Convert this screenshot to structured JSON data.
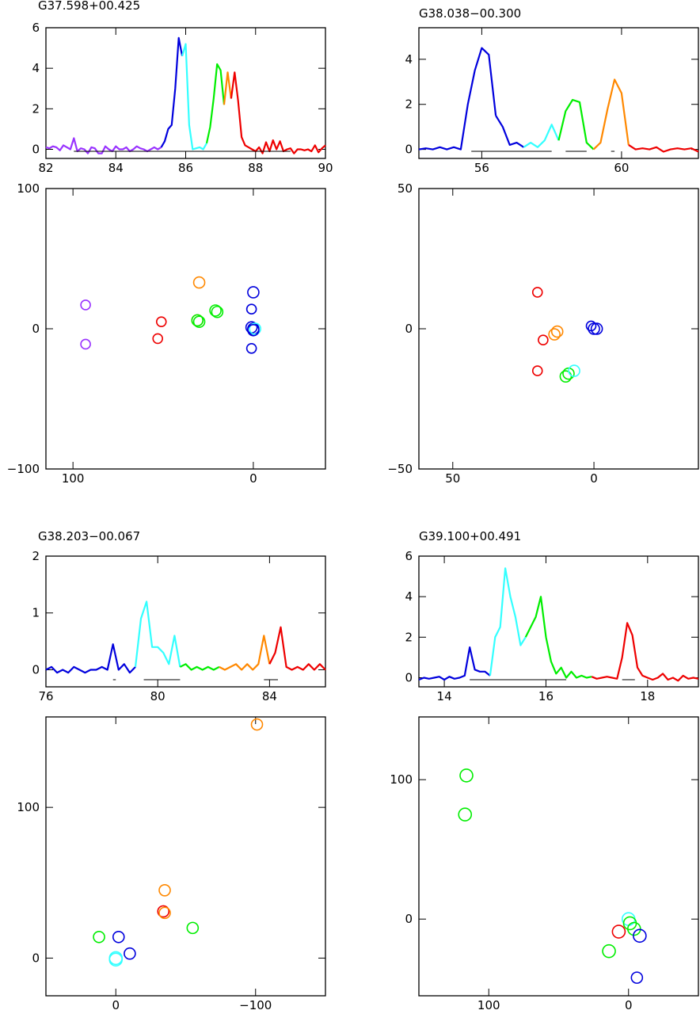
{
  "chart_data": [
    {
      "type": "line",
      "title": "G37.598+00.425",
      "xlim": [
        82,
        90
      ],
      "ylim": [
        -0.45,
        6
      ],
      "xticks": [
        82,
        84,
        86,
        88,
        90
      ],
      "yticks": [
        0,
        2,
        4,
        6
      ],
      "series": [
        {
          "color": "#9933ff",
          "x": [
            82.0,
            82.1,
            82.2,
            82.3,
            82.4,
            82.5,
            82.6,
            82.7,
            82.8,
            82.9,
            83.0,
            83.1,
            83.2,
            83.3,
            83.4,
            83.5,
            83.6,
            83.7,
            83.8,
            83.9,
            84.0,
            84.1,
            84.2,
            84.3,
            84.4,
            84.5,
            84.6,
            84.7,
            84.8,
            84.9,
            85.0,
            85.1,
            85.2,
            85.3
          ],
          "y": [
            0.1,
            0.05,
            0.15,
            0.1,
            -0.05,
            0.2,
            0.1,
            0.0,
            0.55,
            -0.1,
            0.05,
            0.0,
            -0.2,
            0.1,
            0.05,
            -0.2,
            -0.2,
            0.15,
            0.0,
            -0.1,
            0.15,
            0.0,
            0.0,
            0.1,
            -0.1,
            0.0,
            0.15,
            0.05,
            0.0,
            -0.1,
            0.0,
            0.1,
            0.0,
            0.1
          ]
        },
        {
          "color": "#0000dd",
          "x": [
            85.3,
            85.4,
            85.5,
            85.6,
            85.7,
            85.8,
            85.9
          ],
          "y": [
            0.1,
            0.4,
            1.0,
            1.2,
            3.0,
            5.5,
            4.6
          ]
        },
        {
          "color": "#33ffff",
          "x": [
            85.9,
            86.0,
            86.1,
            86.2,
            86.3,
            86.4,
            86.5,
            86.6
          ],
          "y": [
            4.6,
            5.2,
            1.2,
            0.0,
            0.05,
            0.1,
            0.0,
            0.3
          ]
        },
        {
          "color": "#00ee00",
          "x": [
            86.6,
            86.7,
            86.8,
            86.9,
            87.0,
            87.1
          ],
          "y": [
            0.3,
            1.1,
            2.5,
            4.2,
            3.9,
            2.2
          ]
        },
        {
          "color": "#ff8800",
          "x": [
            87.1,
            87.2,
            87.3
          ],
          "y": [
            2.2,
            3.8,
            2.5
          ]
        },
        {
          "color": "#ee0000",
          "x": [
            87.3,
            87.4,
            87.5,
            87.6,
            87.7,
            87.8,
            87.9,
            88.0,
            88.1,
            88.2,
            88.3,
            88.4,
            88.5,
            88.6,
            88.7,
            88.8,
            88.9,
            89.0,
            89.1,
            89.2,
            89.3,
            89.4,
            89.5,
            89.6,
            89.7,
            89.8,
            89.9,
            90.0
          ],
          "y": [
            2.5,
            3.8,
            2.4,
            0.6,
            0.2,
            0.1,
            0.0,
            -0.1,
            0.1,
            -0.2,
            0.35,
            -0.1,
            0.45,
            0.0,
            0.4,
            -0.1,
            0.0,
            0.05,
            -0.2,
            0.0,
            0.0,
            -0.05,
            0.0,
            -0.1,
            0.2,
            -0.15,
            0.05,
            0.2
          ]
        }
      ],
      "ranges": [
        [
          82.8,
          89.0
        ]
      ]
    },
    {
      "type": "scatter",
      "xlim": [
        115,
        -40
      ],
      "ylim": [
        -100,
        100
      ],
      "xticks": [
        100,
        0
      ],
      "yticks": [
        -100,
        0,
        100
      ],
      "points": [
        {
          "x": 93,
          "y": 17,
          "color": "#9933ff",
          "r": 6
        },
        {
          "x": 93,
          "y": -11,
          "color": "#9933ff",
          "r": 6
        },
        {
          "x": 51,
          "y": 5,
          "color": "#ee0000",
          "r": 6
        },
        {
          "x": 53,
          "y": -7,
          "color": "#ee0000",
          "r": 6
        },
        {
          "x": 30,
          "y": 33,
          "color": "#ff8800",
          "r": 7
        },
        {
          "x": 31,
          "y": 6,
          "color": "#ff8800",
          "r": 7
        },
        {
          "x": 31,
          "y": 6,
          "color": "#00ee00",
          "r": 7
        },
        {
          "x": 30,
          "y": 5,
          "color": "#00ee00",
          "r": 7
        },
        {
          "x": 21,
          "y": 13,
          "color": "#00ee00",
          "r": 7
        },
        {
          "x": 20,
          "y": 12,
          "color": "#00ee00",
          "r": 7
        },
        {
          "x": 0,
          "y": 26,
          "color": "#0000dd",
          "r": 7
        },
        {
          "x": 1,
          "y": 14,
          "color": "#0000dd",
          "r": 6
        },
        {
          "x": 1,
          "y": -14,
          "color": "#0000dd",
          "r": 6
        },
        {
          "x": 1,
          "y": 1,
          "color": "#0000dd",
          "r": 7
        },
        {
          "x": 0,
          "y": 0,
          "color": "#0000dd",
          "r": 7
        },
        {
          "x": -1,
          "y": 0,
          "color": "#33ffff",
          "r": 7
        },
        {
          "x": 0,
          "y": -1,
          "color": "#0000dd",
          "r": 7
        }
      ]
    },
    {
      "type": "line",
      "title": "G38.038−00.300",
      "xlim": [
        54.2,
        62.2
      ],
      "ylim": [
        -0.4,
        5.4
      ],
      "xticks": [
        56,
        60
      ],
      "yticks": [
        0,
        2,
        4
      ],
      "series": [
        {
          "color": "#0000dd",
          "x": [
            54.2,
            54.4,
            54.6,
            54.8,
            55.0,
            55.2,
            55.4,
            55.6,
            55.8,
            56.0,
            56.2,
            56.4
          ],
          "y": [
            0.0,
            0.05,
            0.0,
            0.1,
            0.0,
            0.1,
            0.0,
            2.0,
            3.5,
            4.5,
            4.2,
            1.5
          ]
        },
        {
          "color": "#0000dd",
          "x": [
            56.4,
            56.6,
            56.8,
            57.0,
            57.2
          ],
          "y": [
            1.5,
            1.0,
            0.2,
            0.3,
            0.1
          ]
        },
        {
          "color": "#33ffff",
          "x": [
            57.2,
            57.4,
            57.6,
            57.8,
            58.0,
            58.2
          ],
          "y": [
            0.1,
            0.3,
            0.1,
            0.4,
            1.1,
            0.4
          ]
        },
        {
          "color": "#00ee00",
          "x": [
            58.2,
            58.4,
            58.6,
            58.8,
            59.0,
            59.2
          ],
          "y": [
            0.4,
            1.7,
            2.2,
            2.1,
            0.3,
            0.0
          ]
        },
        {
          "color": "#ff8800",
          "x": [
            59.2,
            59.4,
            59.6,
            59.8,
            60.0,
            60.2
          ],
          "y": [
            0.0,
            0.3,
            1.8,
            3.1,
            2.5,
            0.2
          ]
        },
        {
          "color": "#ee0000",
          "x": [
            60.2,
            60.4,
            60.6,
            60.8,
            61.0,
            61.2,
            61.4,
            61.6,
            61.8,
            62.0,
            62.2
          ],
          "y": [
            0.2,
            0.0,
            0.05,
            0.0,
            0.1,
            -0.1,
            0.0,
            0.05,
            0.0,
            0.05,
            -0.1
          ]
        }
      ],
      "ranges": [
        [
          55.7,
          58.0
        ],
        [
          58.4,
          59.0
        ],
        [
          59.7,
          59.8
        ]
      ]
    },
    {
      "type": "scatter",
      "xlim": [
        62,
        -37
      ],
      "ylim": [
        -50,
        50
      ],
      "xticks": [
        50,
        0
      ],
      "yticks": [
        -50,
        0,
        50
      ],
      "points": [
        {
          "x": 20,
          "y": 13,
          "color": "#ee0000",
          "r": 6
        },
        {
          "x": 18,
          "y": -4,
          "color": "#ee0000",
          "r": 6
        },
        {
          "x": 20,
          "y": -15,
          "color": "#ee0000",
          "r": 6
        },
        {
          "x": 14,
          "y": -2,
          "color": "#ff8800",
          "r": 7
        },
        {
          "x": 13,
          "y": -1,
          "color": "#ff8800",
          "r": 7
        },
        {
          "x": 9,
          "y": -16,
          "color": "#00ee00",
          "r": 7
        },
        {
          "x": 10,
          "y": -17,
          "color": "#00ee00",
          "r": 7
        },
        {
          "x": 7,
          "y": -15,
          "color": "#33ffff",
          "r": 7
        },
        {
          "x": 1,
          "y": 1,
          "color": "#0000dd",
          "r": 6
        },
        {
          "x": 0,
          "y": 0,
          "color": "#0000dd",
          "r": 7
        },
        {
          "x": -1,
          "y": 0,
          "color": "#0000dd",
          "r": 7
        }
      ]
    },
    {
      "type": "line",
      "title": "G38.203−00.067",
      "xlim": [
        76,
        86
      ],
      "ylim": [
        -0.3,
        2
      ],
      "xticks": [
        76,
        80,
        84
      ],
      "yticks": [
        0,
        1,
        2
      ],
      "series": [
        {
          "color": "#0000dd",
          "x": [
            76.0,
            76.2,
            76.4,
            76.6,
            76.8,
            77.0,
            77.2,
            77.4,
            77.6,
            77.8,
            78.0,
            78.2,
            78.4,
            78.6,
            78.8,
            79.0,
            79.2
          ],
          "y": [
            0.0,
            0.05,
            -0.05,
            0.0,
            -0.05,
            0.05,
            0.0,
            -0.05,
            0.0,
            0.0,
            0.05,
            0.0,
            0.45,
            0.0,
            0.1,
            -0.05,
            0.05
          ]
        },
        {
          "color": "#33ffff",
          "x": [
            79.2,
            79.4,
            79.6,
            79.8,
            80.0,
            80.2,
            80.4,
            80.6,
            80.8
          ],
          "y": [
            0.05,
            0.9,
            1.2,
            0.4,
            0.4,
            0.3,
            0.1,
            0.6,
            0.05
          ]
        },
        {
          "color": "#00ee00",
          "x": [
            80.8,
            81.0,
            81.2,
            81.4,
            81.6,
            81.8,
            82.0,
            82.2
          ],
          "y": [
            0.05,
            0.1,
            0.0,
            0.05,
            0.0,
            0.05,
            0.0,
            0.05
          ]
        },
        {
          "color": "#ff8800",
          "x": [
            82.2,
            82.4,
            82.6,
            82.8,
            83.0,
            83.2,
            83.4,
            83.6,
            83.8,
            84.0
          ],
          "y": [
            0.05,
            0.0,
            0.05,
            0.1,
            0.0,
            0.1,
            0.0,
            0.1,
            0.6,
            0.1
          ]
        },
        {
          "color": "#ee0000",
          "x": [
            84.0,
            84.2,
            84.4,
            84.6,
            84.8,
            85.0,
            85.2,
            85.4,
            85.6,
            85.8,
            86.0
          ],
          "y": [
            0.1,
            0.3,
            0.75,
            0.05,
            0.0,
            0.05,
            0.0,
            0.1,
            0.0,
            0.1,
            0.0
          ]
        }
      ],
      "ranges": [
        [
          78.4,
          78.5
        ],
        [
          79.5,
          80.8
        ],
        [
          83.8,
          84.3
        ]
      ]
    },
    {
      "type": "line",
      "title": "G39.100+00.491",
      "xlim": [
        13.5,
        19
      ],
      "ylim": [
        -0.45,
        6
      ],
      "xticks": [
        14,
        16,
        18
      ],
      "yticks": [
        0,
        2,
        4,
        6
      ],
      "series": [
        {
          "color": "#0000dd",
          "x": [
            13.5,
            13.6,
            13.7,
            13.8,
            13.9,
            14.0,
            14.1,
            14.2,
            14.3,
            14.4,
            14.5,
            14.6,
            14.7,
            14.8,
            14.9
          ],
          "y": [
            -0.1,
            0.0,
            -0.05,
            0.0,
            0.05,
            -0.1,
            0.05,
            -0.05,
            0.0,
            0.1,
            1.5,
            0.4,
            0.3,
            0.3,
            0.1
          ]
        },
        {
          "color": "#33ffff",
          "x": [
            14.9,
            15.0,
            15.1,
            15.2,
            15.3,
            15.4,
            15.5,
            15.6
          ],
          "y": [
            0.1,
            2.0,
            2.5,
            5.4,
            4.0,
            3.0,
            1.6,
            2.0
          ]
        },
        {
          "color": "#00ee00",
          "x": [
            15.6,
            15.7,
            15.8,
            15.9,
            16.0,
            16.1,
            16.2,
            16.3,
            16.4,
            16.5,
            16.6,
            16.7,
            16.8,
            16.9
          ],
          "y": [
            2.0,
            2.5,
            3.0,
            4.0,
            2.0,
            0.8,
            0.2,
            0.5,
            0.0,
            0.3,
            0.0,
            0.1,
            0.0,
            0.05
          ]
        },
        {
          "color": "#ee0000",
          "x": [
            16.9,
            17.0,
            17.1,
            17.2,
            17.3,
            17.4,
            17.5,
            17.6,
            17.7,
            17.8,
            17.9,
            18.0,
            18.1,
            18.2,
            18.3,
            18.4,
            18.5,
            18.6,
            18.7,
            18.8,
            18.9,
            19.0
          ],
          "y": [
            0.05,
            -0.05,
            0.0,
            0.05,
            0.0,
            -0.05,
            1.0,
            2.7,
            2.1,
            0.5,
            0.1,
            0.0,
            -0.1,
            0.0,
            0.2,
            -0.1,
            0.0,
            -0.15,
            0.1,
            -0.05,
            0.0,
            -0.05
          ]
        }
      ],
      "ranges": [
        [
          14.5,
          16.4
        ],
        [
          17.5,
          17.75
        ]
      ]
    },
    {
      "type": "scatter",
      "xlim": [
        50,
        -150
      ],
      "ylim": [
        -25,
        160
      ],
      "xticks": [
        0,
        -100
      ],
      "yticks": [
        0,
        100
      ],
      "points": [
        {
          "x": -101,
          "y": 155,
          "color": "#ff8800",
          "r": 7
        },
        {
          "x": -35,
          "y": 45,
          "color": "#ff8800",
          "r": 7
        },
        {
          "x": -34,
          "y": 31,
          "color": "#ee0000",
          "r": 7
        },
        {
          "x": -35,
          "y": 30,
          "color": "#ff8800",
          "r": 7
        },
        {
          "x": -55,
          "y": 20,
          "color": "#00ee00",
          "r": 7
        },
        {
          "x": 12,
          "y": 14,
          "color": "#00ee00",
          "r": 7
        },
        {
          "x": -2,
          "y": 14,
          "color": "#0000dd",
          "r": 7
        },
        {
          "x": -10,
          "y": 3,
          "color": "#0000dd",
          "r": 7
        },
        {
          "x": 0,
          "y": 0,
          "color": "#33ffff",
          "r": 8
        },
        {
          "x": 0,
          "y": -1,
          "color": "#33ffff",
          "r": 8
        }
      ]
    },
    {
      "type": "scatter",
      "xlim": [
        150,
        -50
      ],
      "ylim": [
        -55,
        145
      ],
      "xticks": [
        100,
        0
      ],
      "yticks": [
        0,
        100
      ],
      "points": [
        {
          "x": 116,
          "y": 103,
          "color": "#00ee00",
          "r": 8
        },
        {
          "x": 117,
          "y": 75,
          "color": "#00ee00",
          "r": 8
        },
        {
          "x": 14,
          "y": -23,
          "color": "#00ee00",
          "r": 8
        },
        {
          "x": 7,
          "y": -9,
          "color": "#ee0000",
          "r": 8
        },
        {
          "x": 0,
          "y": 0,
          "color": "#33ffff",
          "r": 8
        },
        {
          "x": -1,
          "y": -3,
          "color": "#00ee00",
          "r": 8
        },
        {
          "x": -4,
          "y": -7,
          "color": "#00ee00",
          "r": 8
        },
        {
          "x": -8,
          "y": -12,
          "color": "#0000dd",
          "r": 8
        },
        {
          "x": -6,
          "y": -42,
          "color": "#0000dd",
          "r": 7
        }
      ]
    }
  ]
}
